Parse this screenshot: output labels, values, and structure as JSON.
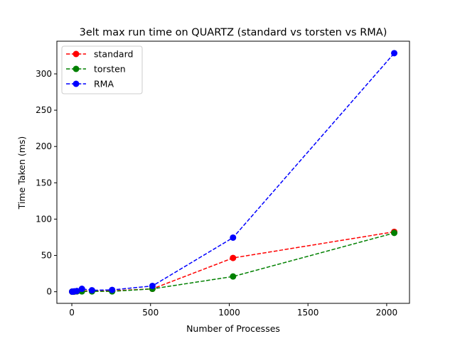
{
  "chart_data": {
    "type": "line",
    "title": "3elt max run time on QUARTZ (standard vs torsten vs RMA)",
    "xlabel": "Number of Processes",
    "ylabel": "Time Taken (ms)",
    "xlim": [
      -95,
      2145
    ],
    "ylim": [
      -16,
      345
    ],
    "xticks": [
      0,
      500,
      1000,
      1500,
      2000
    ],
    "yticks": [
      0,
      50,
      100,
      150,
      200,
      250,
      300
    ],
    "grid": false,
    "legend_position": "top-left",
    "series": [
      {
        "name": "standard",
        "color": "#ff0000",
        "x": [
          2,
          4,
          8,
          16,
          32,
          64,
          128,
          256,
          512,
          1024,
          2048
        ],
        "y": [
          0.1,
          0.1,
          0.2,
          0.3,
          0.6,
          1.0,
          1.5,
          1.2,
          4.0,
          46.5,
          82.5
        ]
      },
      {
        "name": "torsten",
        "color": "#008000",
        "x": [
          2,
          4,
          8,
          16,
          32,
          64,
          128,
          256,
          512,
          1024,
          2048
        ],
        "y": [
          0.1,
          0.1,
          0.2,
          0.3,
          0.5,
          0.5,
          0.5,
          0.5,
          4.0,
          21.0,
          81.0
        ]
      },
      {
        "name": "RMA",
        "color": "#0000ff",
        "x": [
          2,
          4,
          8,
          16,
          32,
          64,
          128,
          256,
          512,
          1024,
          2048
        ],
        "y": [
          0.2,
          0.2,
          0.3,
          0.5,
          1.0,
          4.0,
          2.0,
          2.5,
          8.0,
          74.5,
          328.5
        ]
      }
    ]
  }
}
